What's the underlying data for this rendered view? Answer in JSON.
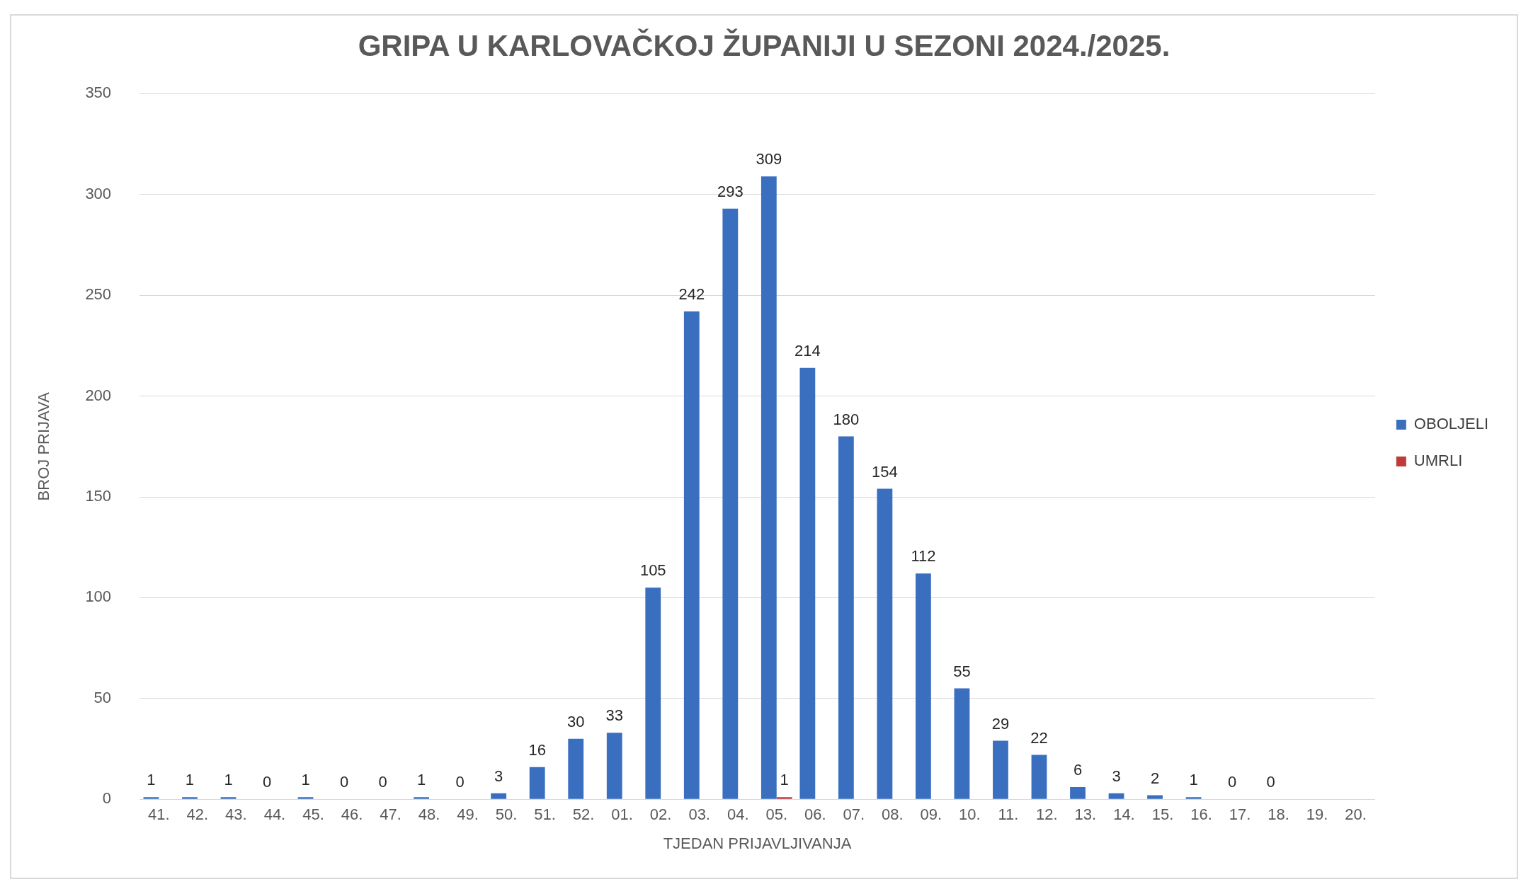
{
  "chart_data": {
    "type": "bar",
    "title": "GRIPA U KARLOVAČKOJ ŽUPANIJI U SEZONI 2024./2025.",
    "xlabel": "TJEDAN PRIJAVLJIVANJA",
    "ylabel": "BROJ PRIJAVA",
    "categories": [
      "41.",
      "42.",
      "43.",
      "44.",
      "45.",
      "46.",
      "47.",
      "48.",
      "49.",
      "50.",
      "51.",
      "52.",
      "01.",
      "02.",
      "03.",
      "04.",
      "05.",
      "06.",
      "07.",
      "08.",
      "09.",
      "10.",
      "11.",
      "12.",
      "13.",
      "14.",
      "15.",
      "16.",
      "17.",
      "18.",
      "19.",
      "20."
    ],
    "series": [
      {
        "name": "OBOLJELI",
        "color": "#3a6fc0",
        "values": [
          1,
          1,
          1,
          0,
          1,
          0,
          0,
          1,
          0,
          3,
          16,
          30,
          33,
          105,
          242,
          293,
          309,
          214,
          180,
          154,
          112,
          55,
          29,
          22,
          6,
          3,
          2,
          1,
          0,
          0,
          null,
          null
        ]
      },
      {
        "name": "UMRLI",
        "color": "#c0393b",
        "values": [
          null,
          null,
          null,
          null,
          null,
          null,
          null,
          null,
          null,
          null,
          null,
          null,
          null,
          null,
          null,
          null,
          1,
          null,
          null,
          null,
          null,
          null,
          null,
          null,
          null,
          null,
          null,
          null,
          null,
          null,
          null,
          null
        ]
      }
    ],
    "ylim": [
      0,
      350
    ],
    "yticks": [
      0,
      50,
      100,
      150,
      200,
      250,
      300,
      350
    ],
    "grid": "y",
    "legend": "right",
    "data_labels": true
  }
}
